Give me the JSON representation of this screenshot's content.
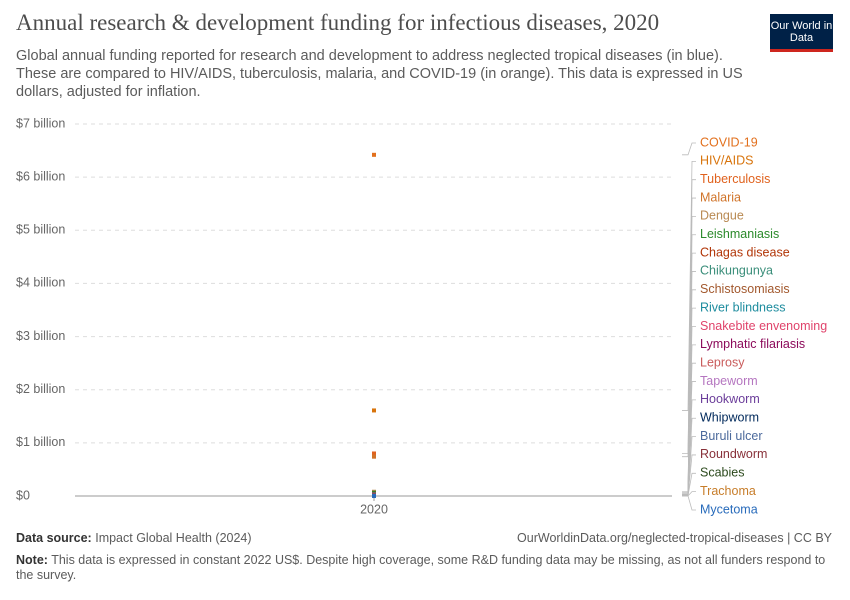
{
  "header": {
    "logo": "Our World in Data"
  },
  "chart_data": {
    "type": "line",
    "title": "Annual research & development funding for infectious diseases, 2020",
    "subtitle": "Global annual funding reported for research and development to address neglected tropical diseases (in blue). These are compared to HIV/AIDS, tuberculosis, malaria, and COVID-19 (in orange). This data is expressed in US dollars, adjusted for inflation.",
    "x": [
      2020
    ],
    "ylim": [
      0,
      7000000000
    ],
    "yticks": [
      {
        "value": 0,
        "label": "$0"
      },
      {
        "value": 1000000000,
        "label": "$1 billion"
      },
      {
        "value": 2000000000,
        "label": "$2 billion"
      },
      {
        "value": 3000000000,
        "label": "$3 billion"
      },
      {
        "value": 4000000000,
        "label": "$4 billion"
      },
      {
        "value": 5000000000,
        "label": "$5 billion"
      },
      {
        "value": 6000000000,
        "label": "$6 billion"
      },
      {
        "value": 7000000000,
        "label": "$7 billion"
      }
    ],
    "grid": true,
    "series": [
      {
        "name": "COVID-19",
        "color": "#e2701d",
        "values": [
          6420000000
        ]
      },
      {
        "name": "HIV/AIDS",
        "color": "#d8740c",
        "values": [
          1610000000
        ]
      },
      {
        "name": "Tuberculosis",
        "color": "#e0621e",
        "values": [
          800000000
        ]
      },
      {
        "name": "Malaria",
        "color": "#d0742a",
        "values": [
          740000000
        ]
      },
      {
        "name": "Dengue",
        "color": "#b98a53",
        "values": [
          80000000
        ]
      },
      {
        "name": "Leishmaniasis",
        "color": "#2b8a2b",
        "values": [
          60000000
        ]
      },
      {
        "name": "Chagas disease",
        "color": "#b13507",
        "values": [
          40000000
        ]
      },
      {
        "name": "Chikungunya",
        "color": "#3a8e7a",
        "values": [
          35000000
        ]
      },
      {
        "name": "Schistosomiasis",
        "color": "#a2582d",
        "values": [
          30000000
        ]
      },
      {
        "name": "River blindness",
        "color": "#1d8c9e",
        "values": [
          25000000
        ]
      },
      {
        "name": "Snakebite envenoming",
        "color": "#e0436b",
        "values": [
          22000000
        ]
      },
      {
        "name": "Lymphatic filariasis",
        "color": "#8c0a5a",
        "values": [
          20000000
        ]
      },
      {
        "name": "Leprosy",
        "color": "#c95b5b",
        "values": [
          15000000
        ]
      },
      {
        "name": "Tapeworm",
        "color": "#b576c0",
        "values": [
          12000000
        ]
      },
      {
        "name": "Hookworm",
        "color": "#6b3d9a",
        "values": [
          10000000
        ]
      },
      {
        "name": "Whipworm",
        "color": "#00295b",
        "values": [
          8000000
        ]
      },
      {
        "name": "Buruli ulcer",
        "color": "#4c6a9c",
        "values": [
          6000000
        ]
      },
      {
        "name": "Roundworm",
        "color": "#883039",
        "values": [
          5000000
        ]
      },
      {
        "name": "Scabies",
        "color": "#2c4a1d",
        "values": [
          4000000
        ]
      },
      {
        "name": "Trachoma",
        "color": "#c77d2a",
        "values": [
          3000000
        ]
      },
      {
        "name": "Mycetoma",
        "color": "#286bbb",
        "values": [
          1000000
        ]
      }
    ]
  },
  "footer": {
    "source_label": "Data source:",
    "source": "Impact Global Health (2024)",
    "url": "OurWorldinData.org/neglected-tropical-diseases | CC BY",
    "note_label": "Note:",
    "note": "This data is expressed in constant 2022 US$. Despite high coverage, some R&D funding data may be missing, as not all funders respond to the survey."
  }
}
